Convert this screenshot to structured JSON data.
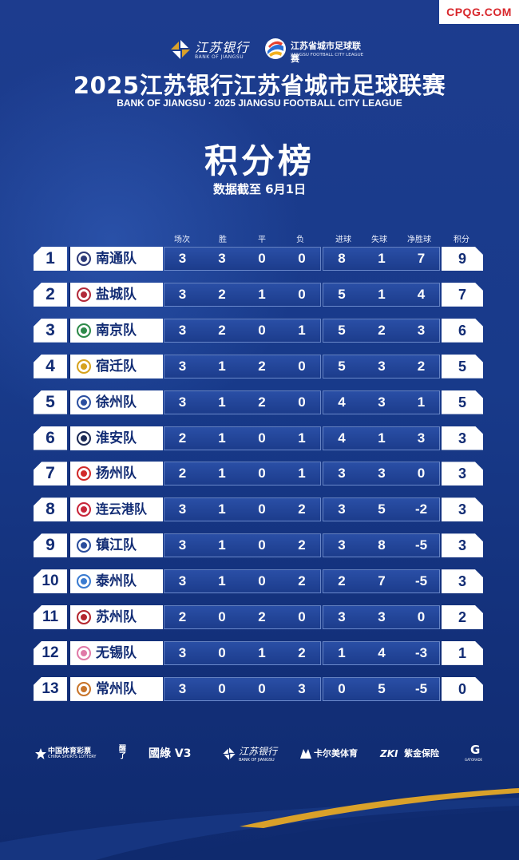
{
  "watermark": "CPQG.COM",
  "logos": {
    "bank_cn": "江苏银行",
    "bank_en": "BANK OF JIANGSU",
    "league_cn": "江苏省城市足球联赛",
    "league_en": "JIANGSU FOOTBALL CITY LEAGUE"
  },
  "title": {
    "main": "2025江苏银行江苏省城市足球联赛",
    "english": "BANK OF JIANGSU · 2025 JIANGSU FOOTBALL CITY LEAGUE",
    "table": "积分榜",
    "date": "数据截至 6月1日"
  },
  "columns": [
    "场次",
    "胜",
    "平",
    "负",
    "进球",
    "失球",
    "净胜球",
    "积分"
  ],
  "standings": [
    {
      "rank": "1",
      "team": "南通队",
      "played": "3",
      "won": "3",
      "drawn": "0",
      "lost": "0",
      "gf": "8",
      "ga": "1",
      "gd": "7",
      "pts": "9",
      "badge_color": "#2d3a78"
    },
    {
      "rank": "2",
      "team": "盐城队",
      "played": "3",
      "won": "2",
      "drawn": "1",
      "lost": "0",
      "gf": "5",
      "ga": "1",
      "gd": "4",
      "pts": "7",
      "badge_color": "#b22a3a"
    },
    {
      "rank": "3",
      "team": "南京队",
      "played": "3",
      "won": "2",
      "drawn": "0",
      "lost": "1",
      "gf": "5",
      "ga": "2",
      "gd": "3",
      "pts": "6",
      "badge_color": "#2e8a4a"
    },
    {
      "rank": "4",
      "team": "宿迁队",
      "played": "3",
      "won": "1",
      "drawn": "2",
      "lost": "0",
      "gf": "5",
      "ga": "3",
      "gd": "2",
      "pts": "5",
      "badge_color": "#d6a21e"
    },
    {
      "rank": "5",
      "team": "徐州队",
      "played": "3",
      "won": "1",
      "drawn": "2",
      "lost": "0",
      "gf": "4",
      "ga": "3",
      "gd": "1",
      "pts": "5",
      "badge_color": "#2b4fa0"
    },
    {
      "rank": "6",
      "team": "淮安队",
      "played": "2",
      "won": "1",
      "drawn": "0",
      "lost": "1",
      "gf": "4",
      "ga": "1",
      "gd": "3",
      "pts": "3",
      "badge_color": "#1c2a55"
    },
    {
      "rank": "7",
      "team": "扬州队",
      "played": "2",
      "won": "1",
      "drawn": "0",
      "lost": "1",
      "gf": "3",
      "ga": "3",
      "gd": "0",
      "pts": "3",
      "badge_color": "#d12a2a"
    },
    {
      "rank": "8",
      "team": "连云港队",
      "played": "3",
      "won": "1",
      "drawn": "0",
      "lost": "2",
      "gf": "3",
      "ga": "5",
      "gd": "-2",
      "pts": "3",
      "badge_color": "#c8263a"
    },
    {
      "rank": "9",
      "team": "镇江队",
      "played": "3",
      "won": "1",
      "drawn": "0",
      "lost": "2",
      "gf": "3",
      "ga": "8",
      "gd": "-5",
      "pts": "3",
      "badge_color": "#2a4d9c"
    },
    {
      "rank": "10",
      "team": "泰州队",
      "played": "3",
      "won": "1",
      "drawn": "0",
      "lost": "2",
      "gf": "2",
      "ga": "7",
      "gd": "-5",
      "pts": "3",
      "badge_color": "#3a7bd0"
    },
    {
      "rank": "11",
      "team": "苏州队",
      "played": "2",
      "won": "0",
      "drawn": "2",
      "lost": "0",
      "gf": "3",
      "ga": "3",
      "gd": "0",
      "pts": "2",
      "badge_color": "#b3262e"
    },
    {
      "rank": "12",
      "team": "无锡队",
      "played": "3",
      "won": "0",
      "drawn": "1",
      "lost": "2",
      "gf": "1",
      "ga": "4",
      "gd": "-3",
      "pts": "1",
      "badge_color": "#e07aa8"
    },
    {
      "rank": "13",
      "team": "常州队",
      "played": "3",
      "won": "0",
      "drawn": "0",
      "lost": "3",
      "gf": "0",
      "ga": "5",
      "gd": "-5",
      "pts": "0",
      "badge_color": "#c8742a"
    }
  ],
  "sponsors": {
    "lottery_cn": "中国体育彩票",
    "lottery_en": "CHINA SPORTS LOTTERY",
    "drink": "醒了",
    "guolu": "國綠 V3",
    "bank_cn": "江苏银行",
    "bank_en": "BANK OF JIANGSU",
    "kaerme": "卡尔美体育",
    "zijin_mark": "ZKI",
    "zijin": "紫金保险",
    "gatorade": "GATORADE"
  },
  "colors": {
    "background": "#183a8a",
    "panel_white": "#ffffff",
    "text_dark": "#122c74",
    "watermark_red": "#d8262b",
    "accent_gold": "#d9a12a"
  }
}
